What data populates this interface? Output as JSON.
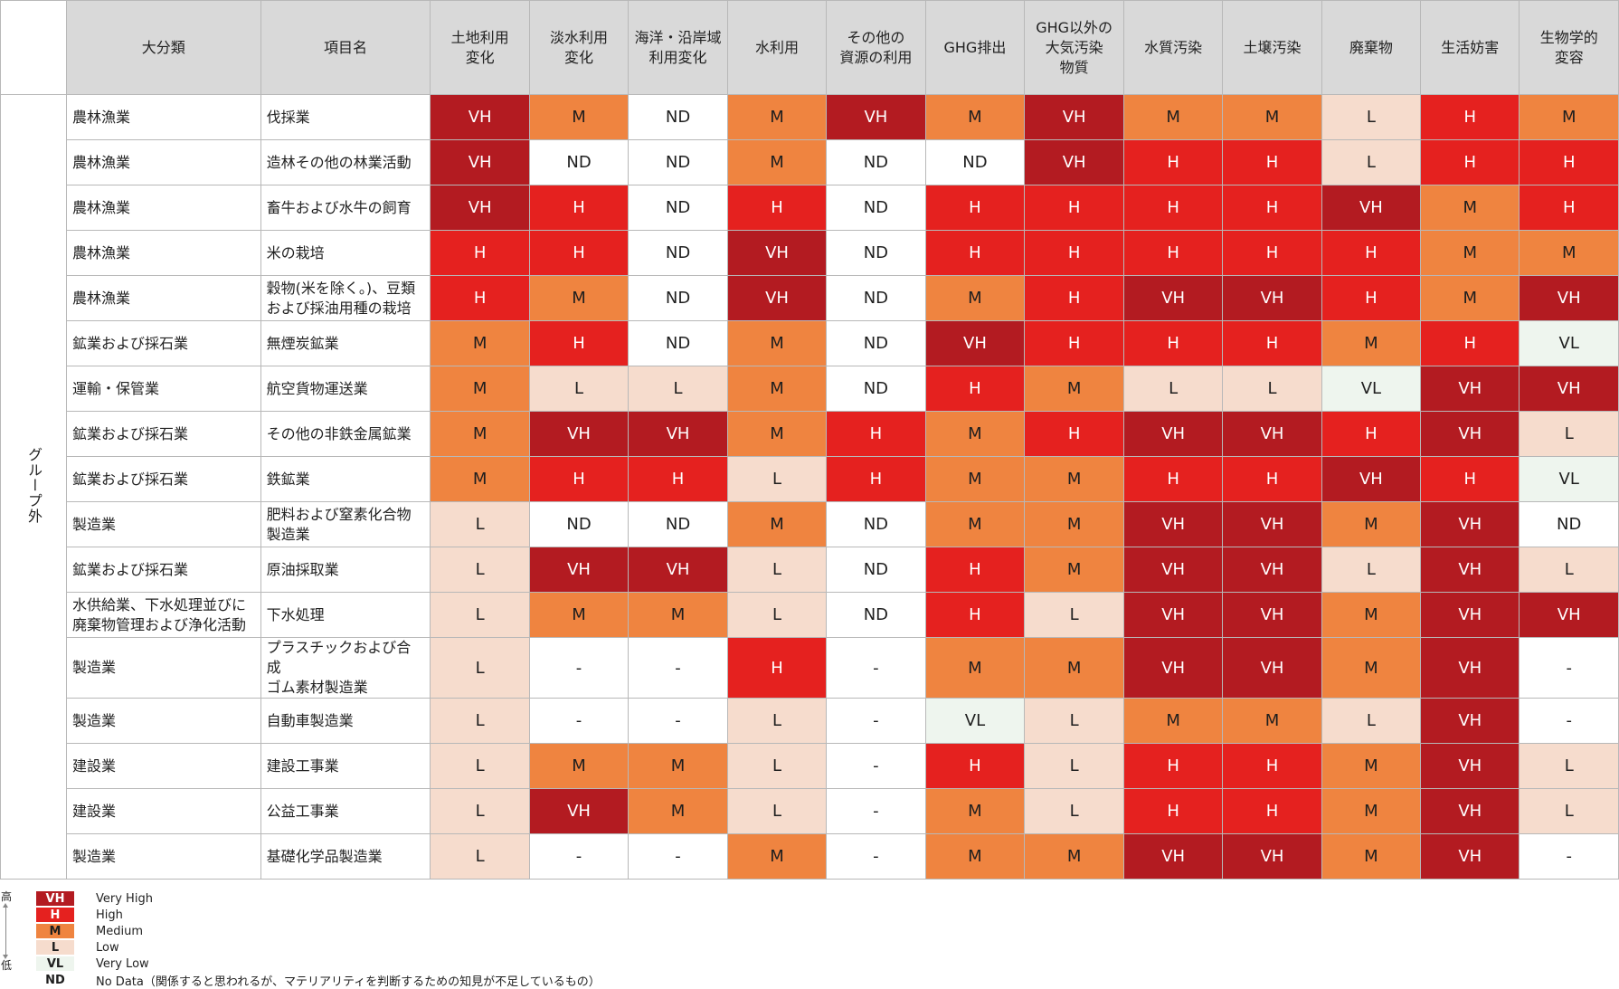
{
  "group_label": "グループ外",
  "headers": {
    "category": "大分類",
    "item": "項目名",
    "impacts": [
      [
        "土地利用",
        "変化"
      ],
      [
        "淡水利用",
        "変化"
      ],
      [
        "海洋・沿岸域",
        "利用変化"
      ],
      [
        "水利用"
      ],
      [
        "その他の",
        "資源の利用"
      ],
      [
        "GHG排出"
      ],
      [
        "GHG以外の",
        "大気汚染",
        "物質"
      ],
      [
        "水質汚染"
      ],
      [
        "土壌汚染"
      ],
      [
        "廃棄物"
      ],
      [
        "生活妨害"
      ],
      [
        "生物学的",
        "変容"
      ]
    ]
  },
  "rows": [
    {
      "category": [
        "農林漁業"
      ],
      "item": [
        "伐採業"
      ],
      "values": [
        "VH",
        "M",
        "ND",
        "M",
        "VH",
        "M",
        "VH",
        "M",
        "M",
        "L",
        "H",
        "M"
      ]
    },
    {
      "category": [
        "農林漁業"
      ],
      "item": [
        "造林その他の林業活動"
      ],
      "values": [
        "VH",
        "ND",
        "ND",
        "M",
        "ND",
        "ND",
        "VH",
        "H",
        "H",
        "L",
        "H",
        "H"
      ]
    },
    {
      "category": [
        "農林漁業"
      ],
      "item": [
        "畜牛および水牛の飼育"
      ],
      "values": [
        "VH",
        "H",
        "ND",
        "H",
        "ND",
        "H",
        "H",
        "H",
        "H",
        "VH",
        "M",
        "H"
      ]
    },
    {
      "category": [
        "農林漁業"
      ],
      "item": [
        "米の栽培"
      ],
      "values": [
        "H",
        "H",
        "ND",
        "VH",
        "ND",
        "H",
        "H",
        "H",
        "H",
        "H",
        "M",
        "M"
      ]
    },
    {
      "category": [
        "農林漁業"
      ],
      "item": [
        "穀物(米を除く。)、豆類",
        "および採油用種の栽培"
      ],
      "values": [
        "H",
        "M",
        "ND",
        "VH",
        "ND",
        "M",
        "H",
        "VH",
        "VH",
        "H",
        "M",
        "VH"
      ]
    },
    {
      "category": [
        "鉱業および採石業"
      ],
      "item": [
        "無煙炭鉱業"
      ],
      "values": [
        "M",
        "H",
        "ND",
        "M",
        "ND",
        "VH",
        "H",
        "H",
        "H",
        "M",
        "H",
        "VL"
      ]
    },
    {
      "category": [
        "運輸・保管業"
      ],
      "item": [
        "航空貨物運送業"
      ],
      "values": [
        "M",
        "L",
        "L",
        "M",
        "ND",
        "H",
        "M",
        "L",
        "L",
        "VL",
        "VH",
        "VH"
      ]
    },
    {
      "category": [
        "鉱業および採石業"
      ],
      "item": [
        "その他の非鉄金属鉱業"
      ],
      "values": [
        "M",
        "VH",
        "VH",
        "M",
        "H",
        "M",
        "H",
        "VH",
        "VH",
        "H",
        "VH",
        "L"
      ]
    },
    {
      "category": [
        "鉱業および採石業"
      ],
      "item": [
        "鉄鉱業"
      ],
      "values": [
        "M",
        "H",
        "H",
        "L",
        "H",
        "M",
        "M",
        "H",
        "H",
        "VH",
        "H",
        "VL"
      ]
    },
    {
      "category": [
        "製造業"
      ],
      "item": [
        "肥料および窒素化合物",
        "製造業"
      ],
      "values": [
        "L",
        "ND",
        "ND",
        "M",
        "ND",
        "M",
        "M",
        "VH",
        "VH",
        "M",
        "VH",
        "ND"
      ]
    },
    {
      "category": [
        "鉱業および採石業"
      ],
      "item": [
        "原油採取業"
      ],
      "values": [
        "L",
        "VH",
        "VH",
        "L",
        "ND",
        "H",
        "M",
        "VH",
        "VH",
        "L",
        "VH",
        "L"
      ]
    },
    {
      "category": [
        "水供給業、下水処理並びに",
        "廃棄物管理および浄化活動"
      ],
      "item": [
        "下水処理"
      ],
      "values": [
        "L",
        "M",
        "M",
        "L",
        "ND",
        "H",
        "L",
        "VH",
        "VH",
        "M",
        "VH",
        "VH"
      ]
    },
    {
      "category": [
        "製造業"
      ],
      "item": [
        "プラスチックおよび合成",
        "ゴム素材製造業"
      ],
      "values": [
        "L",
        "-",
        "-",
        "H",
        "-",
        "M",
        "M",
        "VH",
        "VH",
        "M",
        "VH",
        "-"
      ]
    },
    {
      "category": [
        "製造業"
      ],
      "item": [
        "自動車製造業"
      ],
      "values": [
        "L",
        "-",
        "-",
        "L",
        "-",
        "VL",
        "L",
        "M",
        "M",
        "L",
        "VH",
        "-"
      ]
    },
    {
      "category": [
        "建設業"
      ],
      "item": [
        "建設工事業"
      ],
      "values": [
        "L",
        "M",
        "M",
        "L",
        "-",
        "H",
        "L",
        "H",
        "H",
        "M",
        "VH",
        "L"
      ]
    },
    {
      "category": [
        "建設業"
      ],
      "item": [
        "公益工事業"
      ],
      "values": [
        "L",
        "VH",
        "M",
        "L",
        "-",
        "M",
        "L",
        "H",
        "H",
        "M",
        "VH",
        "L"
      ]
    },
    {
      "category": [
        "製造業"
      ],
      "item": [
        "基礎化学品製造業"
      ],
      "values": [
        "L",
        "-",
        "-",
        "M",
        "-",
        "M",
        "M",
        "VH",
        "VH",
        "M",
        "VH",
        "-"
      ]
    }
  ],
  "legend": {
    "high_label": "高",
    "low_label": "低",
    "entries": [
      {
        "code": "VH",
        "label": "Very High"
      },
      {
        "code": "H",
        "label": "High"
      },
      {
        "code": "M",
        "label": "Medium"
      },
      {
        "code": "L",
        "label": "Low"
      },
      {
        "code": "VL",
        "label": "Very Low"
      },
      {
        "code": "ND",
        "label": "No Data（関係すると思われるが、マテリアリティを判断するための知見が不足しているもの）"
      }
    ]
  },
  "colors": {
    "VH": "#b31b21",
    "H": "#e5211f",
    "M": "#ef8440",
    "L": "#f6dccd",
    "VL": "#eef5ee",
    "ND": "#ffffff",
    "header_bg": "#d9d9d9",
    "border": "#b8b8b8"
  }
}
